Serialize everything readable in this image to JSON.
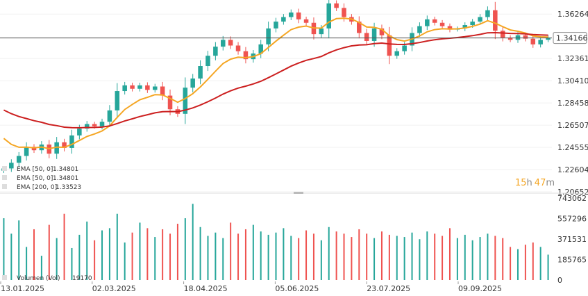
{
  "chart_data": {
    "type": "candlestick",
    "price_axis": {
      "ticks": [
        "1.36264",
        "1.34166",
        "1.32361",
        "1.30410",
        "1.28458",
        "1.26507",
        "1.24555",
        "1.22604",
        "1.20652"
      ],
      "range": [
        1.2065,
        1.375
      ]
    },
    "current_price": {
      "label": "1.34166",
      "value": 1.34166
    },
    "volume_axis": {
      "ticks": [
        "743062",
        "557296",
        "371531",
        "185765",
        "0"
      ],
      "range": [
        0,
        743062
      ]
    },
    "x_axis": {
      "ticks": [
        "13.01.2025",
        "02.03.2025",
        "18.04.2025",
        "05.06.2025",
        "23.07.2025",
        "09.09.2025"
      ]
    },
    "indicators": [
      {
        "label": "EMA [50, 0]",
        "value": "1.34801",
        "color": "#f5a623"
      },
      {
        "label": "EMA [50, 0]",
        "value": "1.34801",
        "color": "#f5a623"
      },
      {
        "label": "EMA [200, 0]",
        "value": "1.33523",
        "color": "#cc1f1f"
      }
    ],
    "volume_label": {
      "label": "Volumen (Vol)",
      "value": "19170"
    },
    "timer": {
      "hours": "15",
      "h": "h",
      "minutes": "47",
      "m": "m"
    },
    "colors": {
      "up": "#26a69a",
      "down": "#ef5350",
      "ema50": "#f5a623",
      "ema200": "#cc1f1f",
      "price_line": "#555555"
    },
    "close_series": [
      1.227,
      1.232,
      1.238,
      1.246,
      1.243,
      1.248,
      1.24,
      1.25,
      1.245,
      1.256,
      1.262,
      1.266,
      1.264,
      1.268,
      1.278,
      1.295,
      1.3,
      1.297,
      1.3,
      1.296,
      1.299,
      1.291,
      1.279,
      1.275,
      1.298,
      1.306,
      1.317,
      1.326,
      1.334,
      1.34,
      1.335,
      1.33,
      1.323,
      1.328,
      1.336,
      1.35,
      1.356,
      1.36,
      1.364,
      1.358,
      1.355,
      1.345,
      1.35,
      1.372,
      1.368,
      1.36,
      1.356,
      1.346,
      1.339,
      1.35,
      1.344,
      1.326,
      1.33,
      1.335,
      1.346,
      1.352,
      1.358,
      1.355,
      1.352,
      1.349,
      1.35,
      1.353,
      1.356,
      1.36,
      1.366,
      1.348,
      1.342,
      1.34,
      1.344,
      1.341,
      1.336,
      1.34,
      1.342
    ],
    "volume_series": [
      560000,
      420000,
      540000,
      300000,
      460000,
      220000,
      500000,
      380000,
      600000,
      290000,
      410000,
      530000,
      360000,
      450000,
      470000,
      600000,
      340000,
      430000,
      520000,
      470000,
      390000,
      460000,
      420000,
      510000,
      560000,
      690000,
      480000,
      400000,
      430000,
      380000,
      520000,
      420000,
      460000,
      500000,
      440000,
      410000,
      430000,
      470000,
      400000,
      380000,
      450000,
      420000,
      360000,
      480000,
      440000,
      420000,
      390000,
      460000,
      420000,
      380000,
      440000,
      410000,
      400000,
      390000,
      430000,
      370000,
      440000,
      420000,
      400000,
      470000,
      380000,
      410000,
      360000,
      390000,
      420000,
      400000,
      380000,
      300000,
      280000,
      320000,
      340000,
      300000,
      230000
    ]
  }
}
